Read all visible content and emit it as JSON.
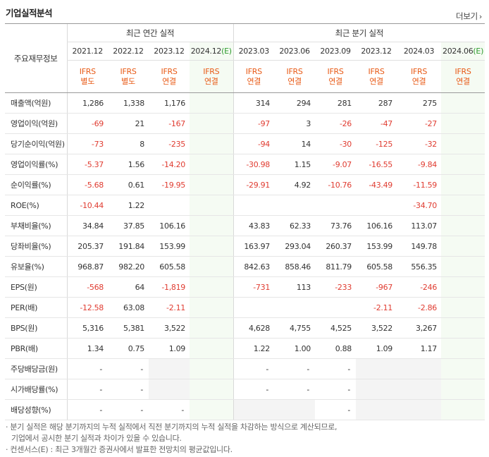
{
  "section_title": "기업실적분석",
  "more_label": "더보기",
  "row_header_label": "주요재무정보",
  "groups": {
    "annual": "최근 연간 실적",
    "quarterly": "최근 분기 실적"
  },
  "periods": [
    "2021.12",
    "2022.12",
    "2023.12",
    "2024.12(E)",
    "2023.03",
    "2023.06",
    "2023.09",
    "2023.12",
    "2024.03",
    "2024.06(E)"
  ],
  "ifrs_top": "IFRS",
  "ifrs_sub": [
    "별도",
    "별도",
    "연결",
    "연결",
    "연결",
    "연결",
    "연결",
    "연결",
    "연결",
    "연결"
  ],
  "rows": [
    {
      "label": "매출액(억원)",
      "values": [
        "1,286",
        "1,338",
        "1,176",
        "",
        "314",
        "294",
        "281",
        "287",
        "275",
        ""
      ]
    },
    {
      "label": "영업이익(억원)",
      "values": [
        "-69",
        "21",
        "-167",
        "",
        "-97",
        "3",
        "-26",
        "-47",
        "-27",
        ""
      ]
    },
    {
      "label": "당기순이익(억원)",
      "values": [
        "-73",
        "8",
        "-235",
        "",
        "-94",
        "14",
        "-30",
        "-125",
        "-32",
        ""
      ]
    },
    {
      "label": "영업이익률(%)",
      "values": [
        "-5.37",
        "1.56",
        "-14.20",
        "",
        "-30.98",
        "1.15",
        "-9.07",
        "-16.55",
        "-9.84",
        ""
      ]
    },
    {
      "label": "순이익률(%)",
      "values": [
        "-5.68",
        "0.61",
        "-19.95",
        "",
        "-29.91",
        "4.92",
        "-10.76",
        "-43.49",
        "-11.59",
        ""
      ]
    },
    {
      "label": "ROE(%)",
      "values": [
        "-10.44",
        "1.22",
        "",
        "",
        "",
        "",
        "",
        "",
        "-34.70",
        ""
      ]
    },
    {
      "label": "부채비율(%)",
      "values": [
        "34.84",
        "37.85",
        "106.16",
        "",
        "43.83",
        "62.33",
        "73.76",
        "106.16",
        "113.07",
        ""
      ]
    },
    {
      "label": "당좌비율(%)",
      "values": [
        "205.37",
        "191.84",
        "153.99",
        "",
        "163.97",
        "293.04",
        "260.37",
        "153.99",
        "149.78",
        ""
      ]
    },
    {
      "label": "유보율(%)",
      "values": [
        "968.87",
        "982.20",
        "605.58",
        "",
        "842.63",
        "858.46",
        "811.79",
        "605.58",
        "556.35",
        ""
      ]
    },
    {
      "label": "EPS(원)",
      "values": [
        "-568",
        "64",
        "-1,819",
        "",
        "-731",
        "113",
        "-233",
        "-967",
        "-246",
        ""
      ]
    },
    {
      "label": "PER(배)",
      "values": [
        "-12.58",
        "63.08",
        "-2.11",
        "",
        "",
        "",
        "",
        "-2.11",
        "-2.86",
        ""
      ]
    },
    {
      "label": "BPS(원)",
      "values": [
        "5,316",
        "5,381",
        "3,522",
        "",
        "4,628",
        "4,755",
        "4,525",
        "3,522",
        "3,267",
        ""
      ]
    },
    {
      "label": "PBR(배)",
      "values": [
        "1.34",
        "0.75",
        "1.09",
        "",
        "1.22",
        "1.00",
        "0.88",
        "1.09",
        "1.17",
        ""
      ]
    },
    {
      "label": "주당배당금(원)",
      "values": [
        "-",
        "-",
        "",
        "",
        "-",
        "-",
        "-",
        "",
        "",
        ""
      ]
    },
    {
      "label": "시가배당률(%)",
      "values": [
        "-",
        "-",
        "",
        "",
        "-",
        "-",
        "-",
        "",
        "",
        ""
      ]
    },
    {
      "label": "배당성향(%)",
      "values": [
        "-",
        "-",
        "-",
        "",
        "",
        "",
        "-",
        "",
        "",
        ""
      ]
    }
  ],
  "empty_cells": [
    [
      13,
      2
    ],
    [
      13,
      7
    ],
    [
      13,
      8
    ],
    [
      14,
      2
    ],
    [
      14,
      7
    ],
    [
      14,
      8
    ],
    [
      15,
      4
    ],
    [
      15,
      5
    ],
    [
      15,
      7
    ],
    [
      15,
      8
    ]
  ],
  "notes": [
    "분기 실적은 해당 분기까지의 누적 실적에서 직전 분기까지의 누적 실적을 차감하는 방식으로 계산되므로,",
    "기업에서 공시한 분기 실적과 차이가 있을 수 있습니다.",
    "컨센서스(E) : 최근 3개월간 증권사에서 발표한 전망치의 평균값입니다."
  ],
  "colors": {
    "negative": "#e03c31",
    "ifrs": "#e85a16",
    "estimate_bg": "#f5fbf3",
    "estimate_mark": "#2e9b2e"
  }
}
